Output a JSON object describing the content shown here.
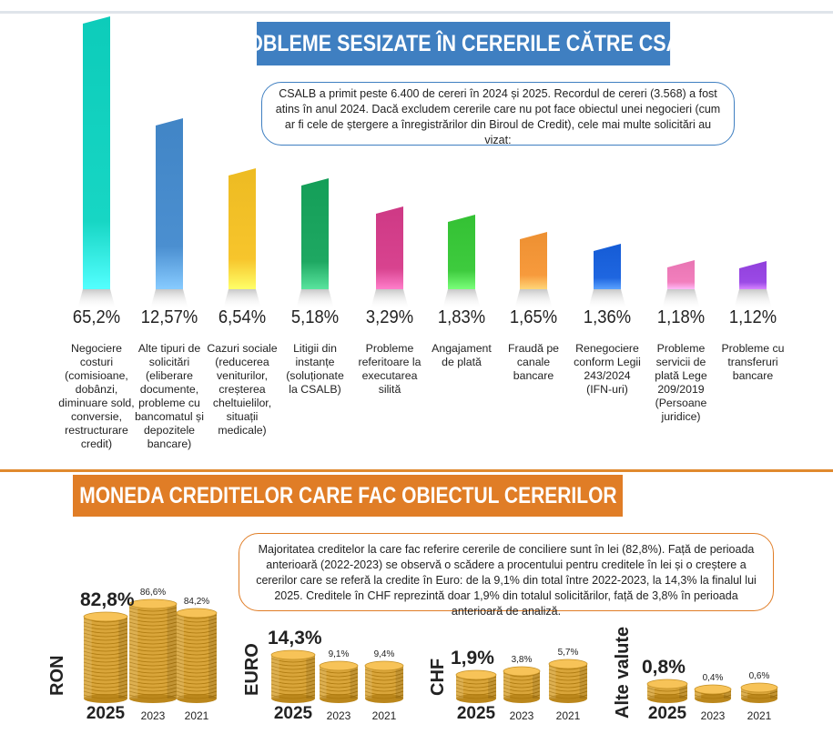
{
  "section1": {
    "title": "PROBLEME SESIZATE ÎN CERERILE CĂTRE CSALB",
    "intro": "CSALB a primit peste 6.400 de cereri în 2024 și 2025. Recordul de cereri (3.568) a fost atins în anul 2024. Dacă excludem cererile care nu pot face obiectul unei negocieri (cum ar fi cele de ștergere a înregistrărilor din Biroul de Credit), cele mai multe solicitări au vizat:"
  },
  "section2": {
    "title": "MONEDA CREDITELOR CARE FAC OBIECTUL CERERILOR",
    "intro": "Majoritatea creditelor la care fac referire cererile de conciliere sunt în lei (82,8%). Față de perioada anterioară (2022-2023) se observă o scădere a procentului pentru creditele în lei și o creștere a cererilor care se referă la credite în Euro: de la 9,1% din total între 2022-2023, la 14,3% la finalul lui 2025. Creditele în CHF reprezintă doar 1,9% din totalul solicitărilor, față de 3,8% în perioada anterioară de analiză."
  },
  "chart_data": [
    {
      "type": "bar",
      "title": "PROBLEME SESIZATE ÎN CERERILE CĂTRE CSALB",
      "categories": [
        "Negociere costuri (comisioane, dobânzi, diminuare sold, conversie, restructurare credit)",
        "Alte tipuri de solicitări (eliberare documente, probleme cu bancomatul și depozitele bancare)",
        "Cazuri sociale (reducerea veniturilor, creșterea cheltuielilor, situații medicale)",
        "Litigii din instanțe (soluționate la CSALB)",
        "Probleme referitoare la executarea silită",
        "Angajament de plată",
        "Fraudă pe canale bancare",
        "Renegociere conform Legii 243/2024 (IFN-uri)",
        "Probleme servicii de plată Lege 209/2019 (Persoane juridice)",
        "Probleme cu transferuri bancare"
      ],
      "labels_lines": [
        [
          "Negociere costuri",
          "(comisioane,",
          "dobânzi,",
          "diminuare sold,",
          "conversie,",
          "restructurare",
          "credit)"
        ],
        [
          "Alte tipuri de",
          "solicitări (eliberare",
          "documente,",
          "probleme cu",
          "bancomatul și",
          "depozitele",
          "bancare)"
        ],
        [
          "Cazuri sociale",
          "(reducerea",
          "veniturilor,",
          "creșterea",
          "cheltuielilor,",
          "situații",
          "medicale)"
        ],
        [
          "Litigii din",
          "instanțe",
          "(soluționate",
          "la CSALB)"
        ],
        [
          "Probleme",
          "referitoare la",
          "executarea",
          "silită"
        ],
        [
          "Angajament",
          "de plată"
        ],
        [
          "Fraudă pe",
          "canale",
          "bancare"
        ],
        [
          "Renegociere",
          "conform Legii",
          "243/2024",
          "(IFN-uri)"
        ],
        [
          "Probleme",
          "servicii de",
          "plată Lege",
          "209/2019",
          "(Persoane",
          "juridice)"
        ],
        [
          "Probleme cu",
          "transferuri",
          "bancare"
        ]
      ],
      "values": [
        65.2,
        12.57,
        6.54,
        5.18,
        3.29,
        1.83,
        1.65,
        1.36,
        1.18,
        1.12
      ],
      "value_labels": [
        "65,2%",
        "12,57%",
        "6,54%",
        "5,18%",
        "3,29%",
        "1,83%",
        "1,65%",
        "1,36%",
        "1,18%",
        "1,12%"
      ],
      "colors": [
        "#17d6c4",
        "#4b8fd0",
        "#f7c52c",
        "#1ea862",
        "#d8438f",
        "#3ecb3e",
        "#f79a3c",
        "#1f66e0",
        "#f27fbd",
        "#9b4ae6"
      ],
      "bar_height_scale_note": "bar heights not proportional in original"
    },
    {
      "type": "bar",
      "title": "MONEDA CREDITELOR CARE FAC OBIECTUL CERERILOR",
      "groups": [
        {
          "currency": "RON",
          "years": [
            "2025",
            "2023",
            "2021"
          ],
          "values": [
            82.8,
            86.6,
            84.2
          ],
          "value_labels": [
            "82,8%",
            "86,6%",
            "84,2%"
          ]
        },
        {
          "currency": "EURO",
          "years": [
            "2025",
            "2023",
            "2021"
          ],
          "values": [
            14.3,
            9.1,
            9.4
          ],
          "value_labels": [
            "14,3%",
            "9,1%",
            "9,4%"
          ]
        },
        {
          "currency": "CHF",
          "years": [
            "2025",
            "2023",
            "2021"
          ],
          "values": [
            1.9,
            3.8,
            5.7
          ],
          "value_labels": [
            "1,9%",
            "3,8%",
            "5,7%"
          ]
        },
        {
          "currency": "Alte valute",
          "years": [
            "2025",
            "2023",
            "2021"
          ],
          "values": [
            0.8,
            0.4,
            0.6
          ],
          "value_labels": [
            "0,8%",
            "0,4%",
            "0,6%"
          ]
        }
      ],
      "coin_color": "#d9a53a"
    }
  ]
}
